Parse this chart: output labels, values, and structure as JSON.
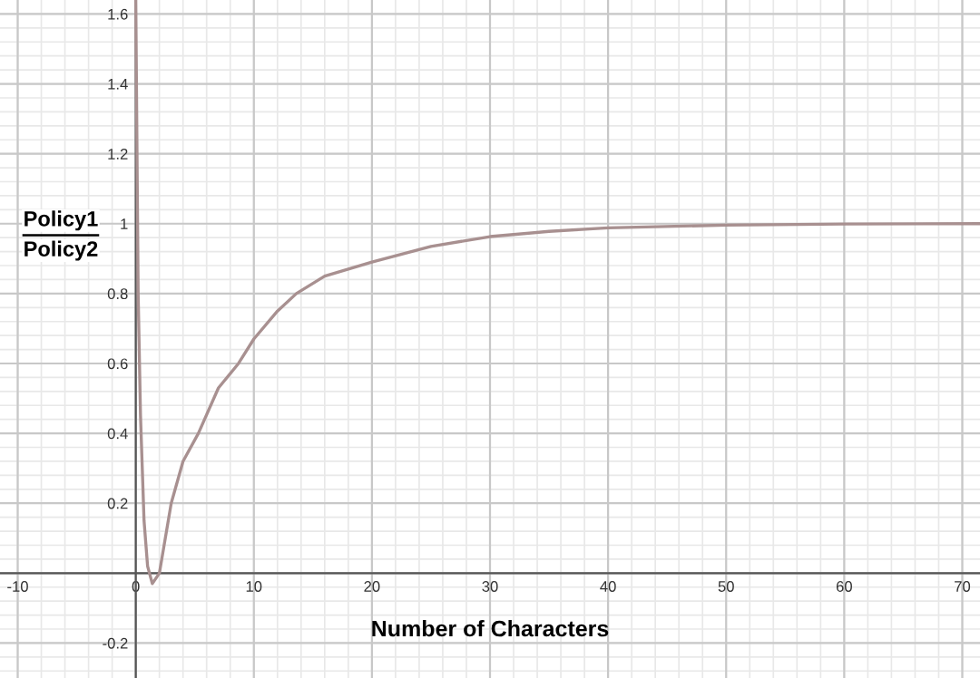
{
  "chart_data": {
    "type": "line",
    "xlabel": "Number of Characters",
    "ylabel": "Policy1\nPolicy2",
    "series": [
      {
        "color": "#a89090",
        "x": [
          0,
          0.2,
          0.4,
          0.7,
          1.0,
          1.4,
          2,
          3,
          4,
          5.3,
          7,
          8.7,
          10,
          12,
          13.6,
          16,
          20,
          25,
          30,
          35,
          40,
          50,
          60,
          71.5
        ],
        "values": [
          1.64,
          0.8,
          0.45,
          0.15,
          0.02,
          -0.03,
          0,
          0.2,
          0.32,
          0.4,
          0.53,
          0.6,
          0.67,
          0.75,
          0.8,
          0.85,
          0.89,
          0.935,
          0.963,
          0.978,
          0.988,
          0.996,
          0.999,
          1.0
        ]
      }
    ],
    "xlim": [
      -11.5,
      71.5
    ],
    "ylim": [
      -0.3,
      1.64
    ],
    "xticks": [
      -10,
      0,
      10,
      20,
      30,
      40,
      50,
      60,
      70
    ],
    "yticks": [
      -0.2,
      {
        "value": 0,
        "label": null
      },
      0.2,
      0.4,
      0.6,
      0.8,
      1,
      1.2,
      1.4,
      1.6
    ],
    "grid": true,
    "marker": "none",
    "line_style": "solid"
  }
}
